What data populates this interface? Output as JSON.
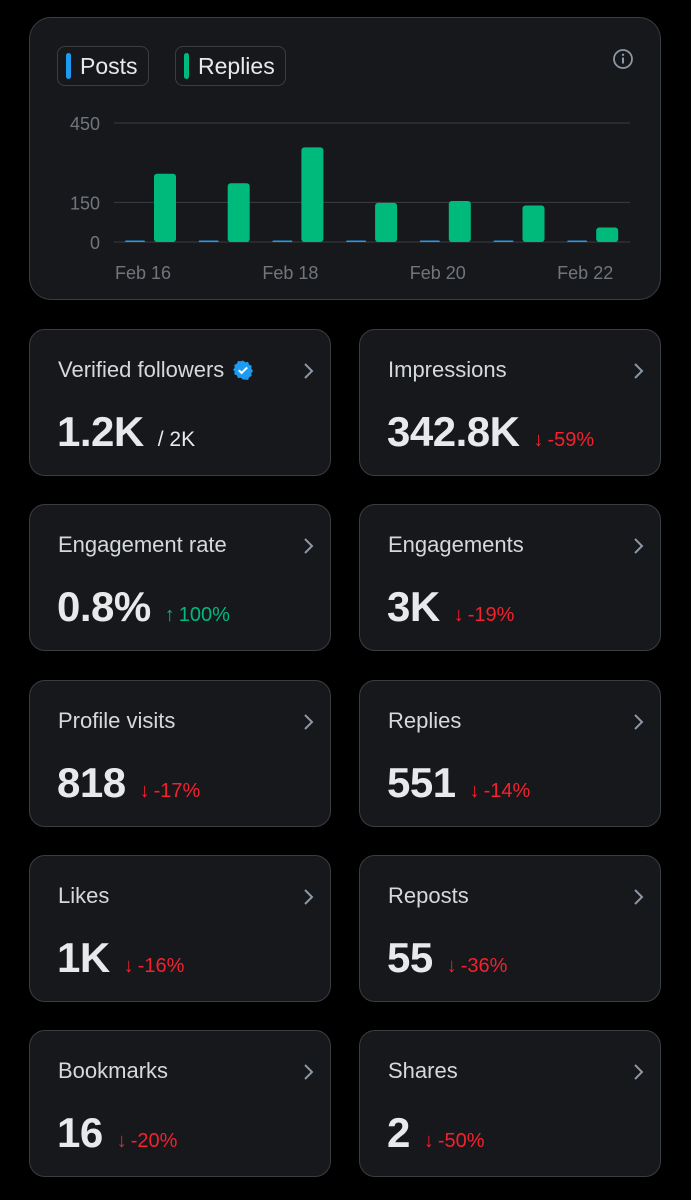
{
  "chart": {
    "legend": [
      {
        "label": "Posts",
        "color": "#1d9bf0"
      },
      {
        "label": "Replies",
        "color": "#00ba7c"
      }
    ],
    "info_icon": "info-icon"
  },
  "chart_data": {
    "type": "bar",
    "categories": [
      "Feb 16",
      "Feb 17",
      "Feb 18",
      "Feb 19",
      "Feb 20",
      "Feb 21",
      "Feb 22"
    ],
    "x_tick_labels": [
      "Feb 16",
      "Feb 18",
      "Feb 20",
      "Feb 22"
    ],
    "y_tick_labels": [
      "450",
      "150",
      "0"
    ],
    "y_ticks": [
      450,
      150,
      0
    ],
    "ylim": [
      0,
      480
    ],
    "series": [
      {
        "name": "Posts",
        "color": "#1d9bf0",
        "values": [
          2,
          3,
          5,
          1,
          1,
          1,
          0
        ]
      },
      {
        "name": "Replies",
        "color": "#00ba7c",
        "values": [
          258,
          222,
          358,
          148,
          155,
          138,
          55
        ]
      }
    ],
    "title": "",
    "xlabel": "",
    "ylabel": ""
  },
  "stats": [
    {
      "title": "Verified followers",
      "value": "1.2K",
      "sub": "/ 2K",
      "verified": true
    },
    {
      "title": "Impressions",
      "value": "342.8K",
      "change": "-59%",
      "direction": "down"
    },
    {
      "title": "Engagement rate",
      "value": "0.8%",
      "change": "100%",
      "direction": "up"
    },
    {
      "title": "Engagements",
      "value": "3K",
      "change": "-19%",
      "direction": "down"
    },
    {
      "title": "Profile visits",
      "value": "818",
      "change": "-17%",
      "direction": "down"
    },
    {
      "title": "Replies",
      "value": "551",
      "change": "-14%",
      "direction": "down"
    },
    {
      "title": "Likes",
      "value": "1K",
      "change": "-16%",
      "direction": "down"
    },
    {
      "title": "Reposts",
      "value": "55",
      "change": "-36%",
      "direction": "down"
    },
    {
      "title": "Bookmarks",
      "value": "16",
      "change": "-20%",
      "direction": "down"
    },
    {
      "title": "Shares",
      "value": "2",
      "change": "-50%",
      "direction": "down"
    }
  ],
  "icons": {
    "verified": "verified-badge-icon",
    "chevron": "chevron-right-icon"
  },
  "colors": {
    "up": "#00ba7c",
    "down": "#f4212e",
    "verified": "#1d9bf0"
  }
}
